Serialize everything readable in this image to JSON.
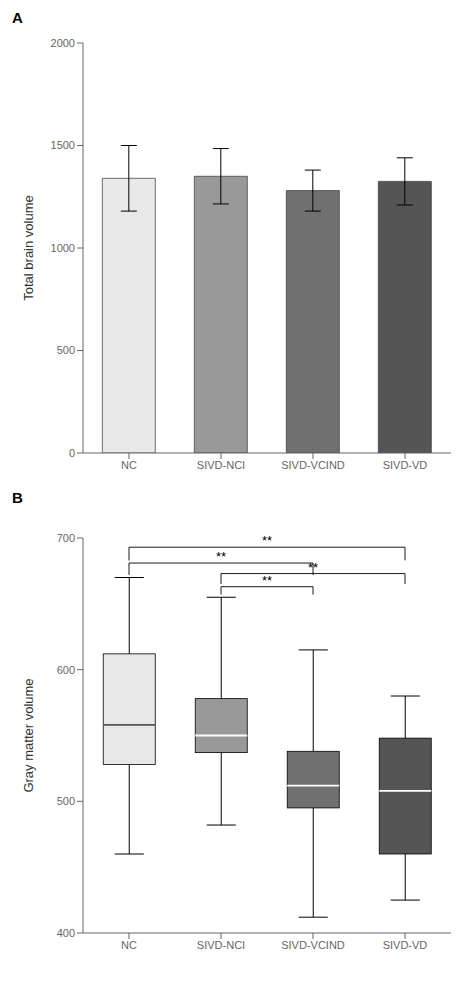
{
  "chart_data": [
    {
      "type": "bar",
      "title": "A",
      "categories": [
        "NC",
        "SIVD-NCI",
        "SIVD-VCIND",
        "SIVD-VD"
      ],
      "values": [
        1340,
        1350,
        1280,
        1325
      ],
      "errors": [
        160,
        135,
        100,
        115
      ],
      "ylabel": "Total brain volume",
      "ylim": [
        0,
        2000
      ],
      "yticks": [
        0,
        500,
        1000,
        1500,
        2000
      ],
      "colors": [
        "#e8e8e8",
        "#999999",
        "#707070",
        "#555555"
      ]
    },
    {
      "type": "box",
      "title": "B",
      "categories": [
        "NC",
        "SIVD-NCI",
        "SIVD-VCIND",
        "SIVD-VD"
      ],
      "medians": [
        558,
        550,
        512,
        508
      ],
      "q1": [
        528,
        537,
        495,
        460
      ],
      "q3": [
        612,
        578,
        538,
        548
      ],
      "whisker_low": [
        460,
        482,
        412,
        425
      ],
      "whisker_high": [
        670,
        655,
        615,
        580
      ],
      "ylabel": "Gray matter volume",
      "ylim": [
        400,
        700
      ],
      "yticks": [
        400,
        500,
        600,
        700
      ],
      "colors": [
        "#e8e8e8",
        "#999999",
        "#707070",
        "#555555"
      ],
      "annotations": [
        {
          "text": "**",
          "x1": "NC",
          "x2": "SIVD-VCIND",
          "y_attach": 672,
          "y_line": 681
        },
        {
          "text": "**",
          "x1": "NC",
          "x2": "SIVD-VD",
          "y_attach": 683,
          "y_line": 693
        },
        {
          "text": "**",
          "x1": "SIVD-NCI",
          "x2": "SIVD-VCIND",
          "y_attach": 657,
          "y_line": 663
        },
        {
          "text": "**",
          "x1": "SIVD-NCI",
          "x2": "SIVD-VD",
          "y_attach": 665,
          "y_line": 673
        }
      ]
    }
  ]
}
